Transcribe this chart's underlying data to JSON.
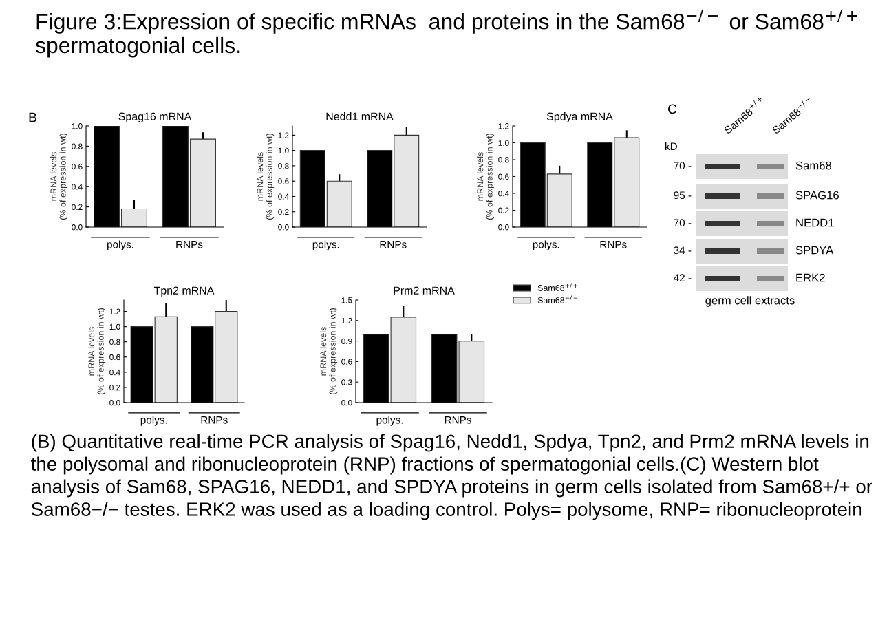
{
  "chart_data": [
    {
      "type": "other",
      "title": "Figure 3:Expression of specific mRNAs  and proteins in the Sam68$^{−/−}$ or Sam68$^{+/+}$ spermatogonial cells.",
      "annotations": [
        "(B) Quantitative real-time PCR analysis of Spag16, Nedd1, Spdya, Tpn2, and Prm2 mRNA levels in the polysomal and ribonucleoprotein (RNP) fractions of spermatogonial cells.(C) Western blot analysis of Sam68, SPAG16, NEDD1, and SPDYA proteins in germ cells isolated from Sam68+/+ or Sam68−/− testes. ERK2 was used as a loading control. Polys= polysome, RNP= ribonucleoprotein"
      ]
    },
    {
      "type": "bar",
      "title": "Spag16 mRNA",
      "ylabel": "mRNA levels\n(% of expression in wt)",
      "categories": [
        "polys.",
        "RNPs"
      ],
      "ylim": [
        0,
        1.0
      ],
      "yticks": [
        "0.0",
        0.2,
        0.4,
        0.6,
        0.8,
        "1.0"
      ],
      "annotations": [
        "B"
      ],
      "series": [
        {
          "color": "#000000",
          "values": [
            1.0,
            1.0
          ]
        },
        {
          "color": "#e6e6e6",
          "values": [
            0.18,
            0.87
          ],
          "errors": [
            [
              0.18,
              0.26
            ],
            [
              0.87,
              0.93
            ]
          ]
        }
      ]
    },
    {
      "type": "bar",
      "title": "Nedd1 mRNA",
      "ylabel": "mRNA levels\n(% of expression in wt)",
      "categories": [
        "polys.",
        "RNPs"
      ],
      "ylim": [
        0,
        1.32
      ],
      "yticks": [
        "0.0",
        0.2,
        0.4,
        0.6,
        0.8,
        "1.0",
        1.2
      ],
      "series": [
        {
          "color": "#000000",
          "values": [
            1.0,
            1.0
          ]
        },
        {
          "color": "#e6e6e6",
          "values": [
            0.6,
            1.2
          ],
          "errors": [
            [
              0.6,
              0.68
            ],
            [
              1.2,
              1.3
            ]
          ]
        }
      ]
    },
    {
      "type": "bar",
      "title": "Spdya mRNA",
      "ylabel": "mRNA levels\n(% of expression in wt)",
      "categories": [
        "polys.",
        "RNPs"
      ],
      "ylim": [
        0,
        1.2
      ],
      "yticks": [
        "0.0",
        0.2,
        0.4,
        0.6,
        0.8,
        "1.0",
        1.2
      ],
      "series": [
        {
          "color": "#000000",
          "values": [
            1.0,
            1.0
          ]
        },
        {
          "color": "#e6e6e6",
          "values": [
            0.63,
            1.06
          ],
          "errors": [
            [
              0.63,
              0.72
            ],
            [
              1.06,
              1.14
            ]
          ]
        }
      ]
    },
    {
      "type": "bar",
      "title": "Tpn2 mRNA",
      "ylabel": "mRNA levels\n(% of expression in wt)",
      "categories": [
        "polys.",
        "RNPs"
      ],
      "ylim": [
        0,
        1.35
      ],
      "yticks": [
        "0.0",
        0.2,
        0.4,
        0.6,
        0.8,
        "1.0",
        1.2
      ],
      "series": [
        {
          "color": "#000000",
          "values": [
            1.0,
            1.0
          ]
        },
        {
          "color": "#e6e6e6",
          "values": [
            1.13,
            1.2
          ],
          "errors": [
            [
              1.13,
              1.3
            ],
            [
              1.2,
              1.34
            ]
          ]
        }
      ]
    },
    {
      "type": "bar",
      "title": "Prm2 mRNA",
      "ylabel": "mRNA levels\n(% of expression in wt)",
      "categories": [
        "polys.",
        "RNPs"
      ],
      "ylim": [
        0,
        1.5
      ],
      "yticks": [
        "0.0",
        0.3,
        0.6,
        0.9,
        1.2,
        1.5
      ],
      "legend": "right",
      "series": [
        {
          "name": "Sam68$^{+/+}$",
          "color": "#000000",
          "values": [
            1.0,
            1.0
          ]
        },
        {
          "name": "Sam68$^{−/−}$",
          "color": "#e6e6e6",
          "values": [
            1.25,
            0.9
          ],
          "errors": [
            [
              1.25,
              1.4
            ],
            [
              0.9,
              0.99
            ]
          ]
        }
      ]
    },
    {
      "type": "other",
      "title": "C",
      "categories": [
        "Sam68$^{+/+}$",
        "Sam68$^{−/−}$"
      ],
      "annotations": [
        "kD",
        "70 -",
        "95 -",
        "70 -",
        "34 -",
        "42 -",
        "Sam68",
        "SPAG16",
        "NEDD1",
        "SPDYA",
        "ERK2",
        "germ cell extracts"
      ]
    }
  ]
}
